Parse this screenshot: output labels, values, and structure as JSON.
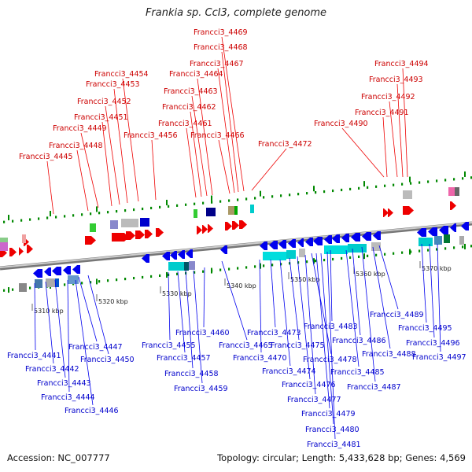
{
  "title": "Frankia sp. CcI3, complete genome",
  "footer": {
    "accession": "Accession: NC_007777",
    "summary": "Topology: circular; Length: 5,433,628 bp; Genes: 4,569"
  },
  "colors": {
    "forward_strand": "#ee0000",
    "reverse_strand": "#0000ee",
    "backbone": "#999999",
    "tick": "#008800"
  },
  "scale_labels": [
    "5310 kbp",
    "5320 kbp",
    "5330 kbp",
    "5340 kbp",
    "5350 kbp",
    "5360 kbp",
    "5370 kbp"
  ],
  "top_genes": [
    "Francci3_4445",
    "Francci3_4448",
    "Francci3_4449",
    "Francci3_4451",
    "Francci3_4452",
    "Francci3_4453",
    "Francci3_4454",
    "Francci3_4456",
    "Francci3_4461",
    "Francci3_4462",
    "Francci3_4463",
    "Francci3_4464",
    "Francci3_4466",
    "Francci3_4467",
    "Francci3_4468",
    "Francci3_4469",
    "Francci3_4472",
    "Francci3_4490",
    "Francci3_4491",
    "Francci3_4492",
    "Francci3_4493",
    "Francci3_4494"
  ],
  "bottom_genes": [
    "Francci3_4441",
    "Francci3_4442",
    "Francci3_4443",
    "Francci3_4444",
    "Francci3_4446",
    "Francci3_4447",
    "Francci3_4450",
    "Francci3_4455",
    "Francci3_4457",
    "Francci3_4458",
    "Francci3_4459",
    "Francci3_4460",
    "Francci3_4465",
    "Francci3_4470",
    "Francci3_4473",
    "Francci3_4474",
    "Francci3_4475",
    "Francci3_4476",
    "Francci3_4477",
    "Francci3_4478",
    "Francci3_4479",
    "Francci3_4480",
    "Francci3_4481",
    "Francci3_4483",
    "Francci3_4485",
    "Francci3_4486",
    "Francci3_4487",
    "Francci3_4488",
    "Francci3_4489",
    "Francci3_4495",
    "Francci3_4496",
    "Francci3_4497"
  ]
}
